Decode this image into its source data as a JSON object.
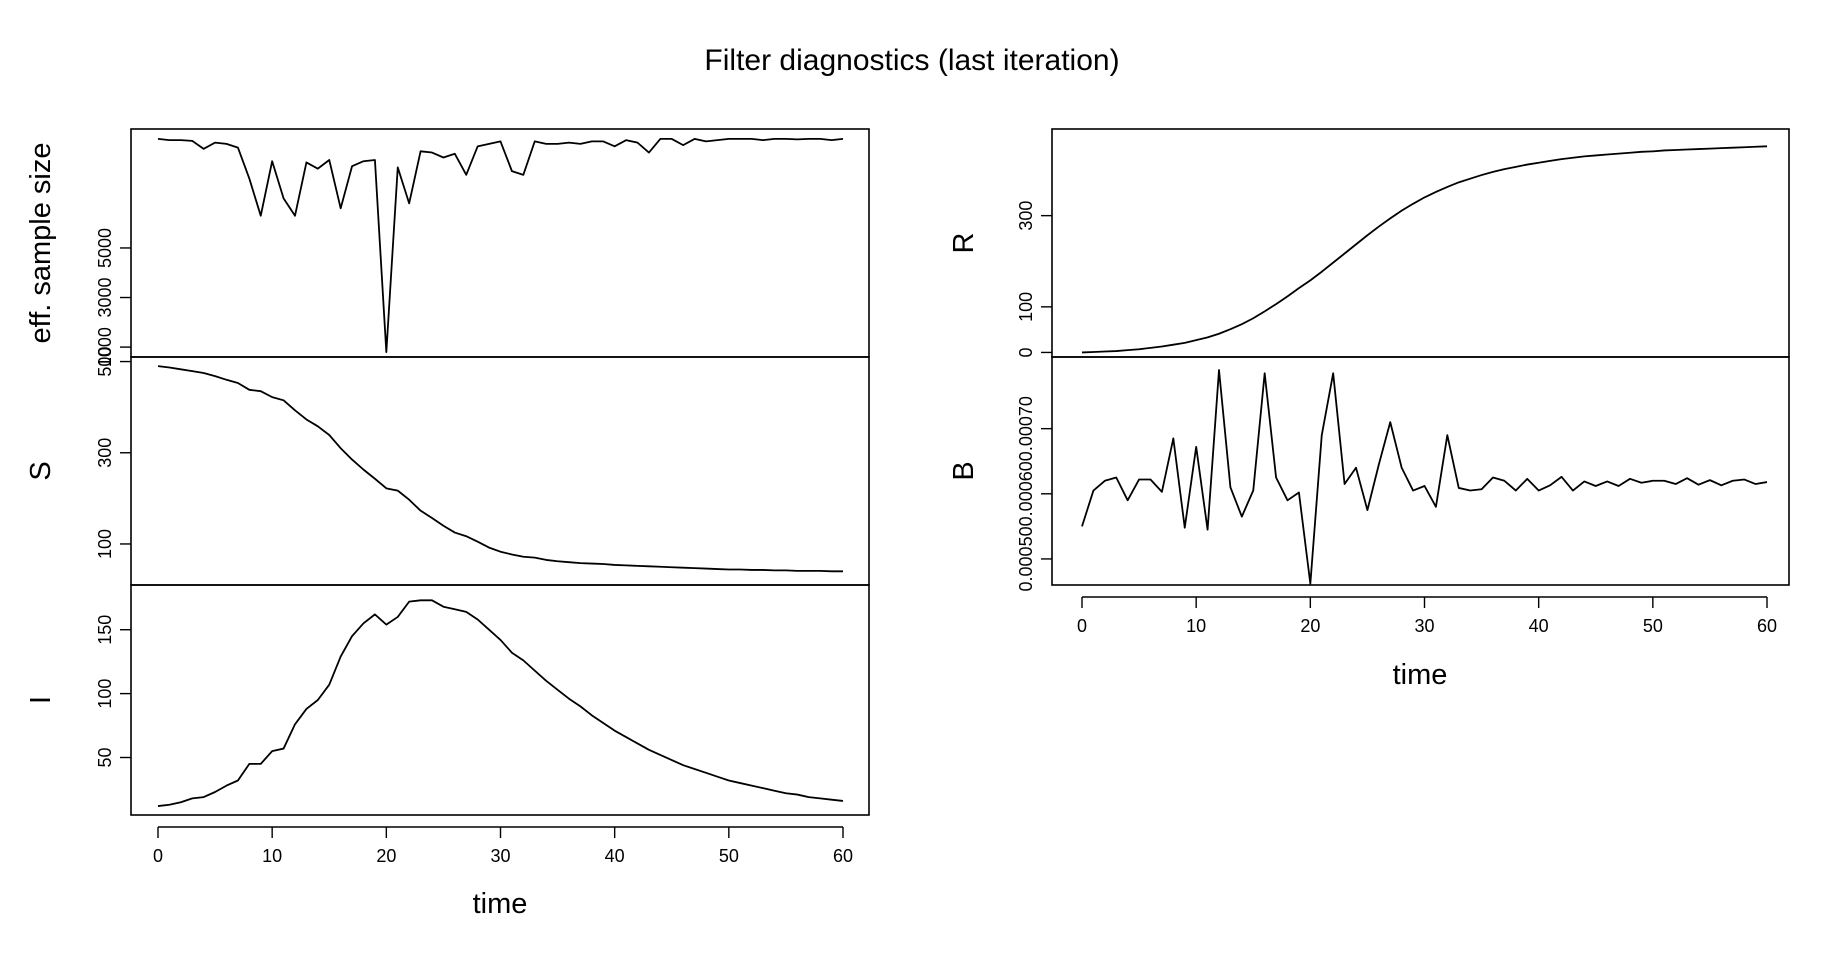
{
  "title": "Filter diagnostics (last iteration)",
  "chart_data": {
    "type": "line",
    "title": "Filter diagnostics (last iteration)",
    "x": [
      0,
      1,
      2,
      3,
      4,
      5,
      6,
      7,
      8,
      9,
      10,
      11,
      12,
      13,
      14,
      15,
      16,
      17,
      18,
      19,
      20,
      21,
      22,
      23,
      24,
      25,
      26,
      27,
      28,
      29,
      30,
      31,
      32,
      33,
      34,
      35,
      36,
      37,
      38,
      39,
      40,
      41,
      42,
      43,
      44,
      45,
      46,
      47,
      48,
      49,
      50,
      51,
      52,
      53,
      54,
      55,
      56,
      57,
      58,
      59,
      60
    ],
    "xlim": [
      0,
      60
    ],
    "xticks": [
      0,
      10,
      20,
      30,
      40,
      50,
      60
    ],
    "xticklabels": [
      "0",
      "10",
      "20",
      "30",
      "40",
      "50",
      "60"
    ],
    "xlabel": "time",
    "panels": [
      {
        "ylabel": "eff. sample size",
        "ylim": [
          600,
          9800
        ],
        "yticks": [
          1000,
          3000,
          5000
        ],
        "yticklabels": [
          "1000",
          "3000",
          "5000"
        ],
        "y": [
          9400,
          9350,
          9350,
          9320,
          9000,
          9250,
          9200,
          9050,
          7800,
          6300,
          8500,
          7000,
          6300,
          8450,
          8200,
          8550,
          6600,
          8300,
          8500,
          8550,
          800,
          8250,
          6800,
          8900,
          8850,
          8650,
          8800,
          7950,
          9100,
          9200,
          9300,
          8100,
          7950,
          9300,
          9200,
          9200,
          9250,
          9200,
          9300,
          9300,
          9100,
          9350,
          9250,
          8850,
          9400,
          9400,
          9150,
          9400,
          9300,
          9350,
          9400,
          9400,
          9400,
          9350,
          9400,
          9400,
          9380,
          9400,
          9400,
          9350,
          9400
        ]
      },
      {
        "ylabel": "S",
        "ylim": [
          10,
          510
        ],
        "yticks": [
          100,
          300,
          500
        ],
        "yticklabels": [
          "100",
          "300",
          "500"
        ],
        "y": [
          490,
          487,
          483,
          479,
          475,
          468,
          460,
          453,
          438,
          435,
          422,
          415,
          393,
          373,
          358,
          339,
          310,
          285,
          263,
          243,
          222,
          217,
          197,
          173,
          157,
          140,
          125,
          117,
          105,
          92,
          83,
          77,
          72,
          70,
          65,
          62,
          60,
          58,
          57,
          56,
          54,
          53,
          52,
          51,
          50,
          49,
          48,
          47,
          46,
          45,
          44,
          44,
          43,
          43,
          42,
          42,
          41,
          41,
          41,
          40,
          40
        ]
      },
      {
        "ylabel": "I",
        "ylim": [
          5,
          185
        ],
        "yticks": [
          50,
          100,
          150
        ],
        "yticklabels": [
          "50",
          "100",
          "150"
        ],
        "y": [
          12,
          13,
          15,
          18,
          19,
          23,
          28,
          32,
          45,
          45,
          55,
          57,
          76,
          88,
          95,
          107,
          129,
          145,
          155,
          162,
          154,
          160,
          172,
          173,
          173,
          168,
          166,
          164,
          158,
          150,
          142,
          132,
          126,
          118,
          110,
          103,
          96,
          90,
          83,
          77,
          71,
          66,
          61,
          56,
          52,
          48,
          44,
          41,
          38,
          35,
          32,
          30,
          28,
          26,
          24,
          22,
          21,
          19,
          18,
          17,
          16
        ]
      },
      {
        "ylabel": "R",
        "ylim": [
          -10,
          490
        ],
        "yticks": [
          0,
          100,
          300
        ],
        "yticklabels": [
          "0",
          "100",
          "300"
        ],
        "y": [
          0,
          1,
          2,
          3,
          5,
          7,
          10,
          13,
          17,
          21,
          27,
          33,
          41,
          51,
          62,
          75,
          90,
          106,
          123,
          141,
          158,
          177,
          197,
          217,
          237,
          257,
          276,
          294,
          311,
          326,
          340,
          352,
          363,
          373,
          381,
          389,
          396,
          402,
          407,
          412,
          416,
          420,
          424,
          427,
          430,
          432,
          434,
          436,
          438,
          440,
          441,
          443,
          444,
          445,
          446,
          447,
          448,
          449,
          450,
          451,
          452
        ]
      },
      {
        "ylabel": "B",
        "ylim": [
          0.00046,
          0.00081
        ],
        "yticks": [
          0.0005,
          0.0006,
          0.0007
        ],
        "yticklabels": [
          "0.00050",
          "0.00060",
          "0.00070"
        ],
        "y": [
          0.00055,
          0.000605,
          0.00062,
          0.000625,
          0.00059,
          0.000622,
          0.000622,
          0.000603,
          0.000685,
          0.000548,
          0.000672,
          0.000545,
          0.00079,
          0.00061,
          0.000565,
          0.000605,
          0.000785,
          0.000625,
          0.00059,
          0.000602,
          0.000462,
          0.00069,
          0.000785,
          0.000615,
          0.00064,
          0.000575,
          0.000645,
          0.00071,
          0.00064,
          0.000605,
          0.000612,
          0.00058,
          0.00069,
          0.000609,
          0.000605,
          0.000607,
          0.000625,
          0.00062,
          0.000605,
          0.000623,
          0.000605,
          0.000613,
          0.000626,
          0.000605,
          0.000619,
          0.000612,
          0.000619,
          0.000612,
          0.000623,
          0.000617,
          0.00062,
          0.00062,
          0.000615,
          0.000624,
          0.000614,
          0.000621,
          0.000613,
          0.00062,
          0.000622,
          0.000615,
          0.000618
        ]
      }
    ]
  }
}
